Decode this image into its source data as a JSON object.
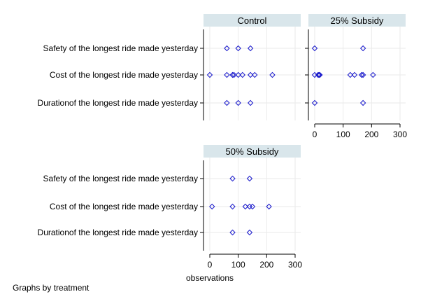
{
  "chart_data": {
    "type": "scatter",
    "xlabel": "observations",
    "note": "Graphs by treatment",
    "xlim": [
      0,
      300
    ],
    "xticks": [
      0,
      100,
      200,
      300
    ],
    "grid": true,
    "marker_color": "#1a1acc",
    "categories": [
      "Safety of the longest ride made yesterday",
      "Cost of the longest ride made yesterday",
      "Durationof the longest ride made yesterday"
    ],
    "panels": [
      {
        "title": "Control",
        "series": [
          {
            "category": "Safety of the longest ride made yesterday",
            "values": [
              60,
              100,
              143
            ]
          },
          {
            "category": "Cost of the longest ride made yesterday",
            "values": [
              0,
              60,
              80,
              85,
              100,
              115,
              143,
              158,
              220
            ]
          },
          {
            "category": "Durationof the longest ride made yesterday",
            "values": [
              60,
              100,
              143
            ]
          }
        ]
      },
      {
        "title": "25% Subsidy",
        "series": [
          {
            "category": "Safety of the longest ride made yesterday",
            "values": [
              0,
              170
            ]
          },
          {
            "category": "Cost of the longest ride made yesterday",
            "values": [
              0,
              12,
              15,
              18,
              125,
              140,
              165,
              170,
              205
            ]
          },
          {
            "category": "Durationof the longest ride made yesterday",
            "values": [
              0,
              170
            ]
          }
        ]
      },
      {
        "title": "50% Subsidy",
        "series": [
          {
            "category": "Safety of the longest ride made yesterday",
            "values": [
              80,
              140
            ]
          },
          {
            "category": "Cost of the longest ride made yesterday",
            "values": [
              8,
              80,
              125,
              140,
              150,
              208
            ]
          },
          {
            "category": "Durationof the longest ride made yesterday",
            "values": [
              80,
              140
            ]
          }
        ]
      }
    ]
  }
}
